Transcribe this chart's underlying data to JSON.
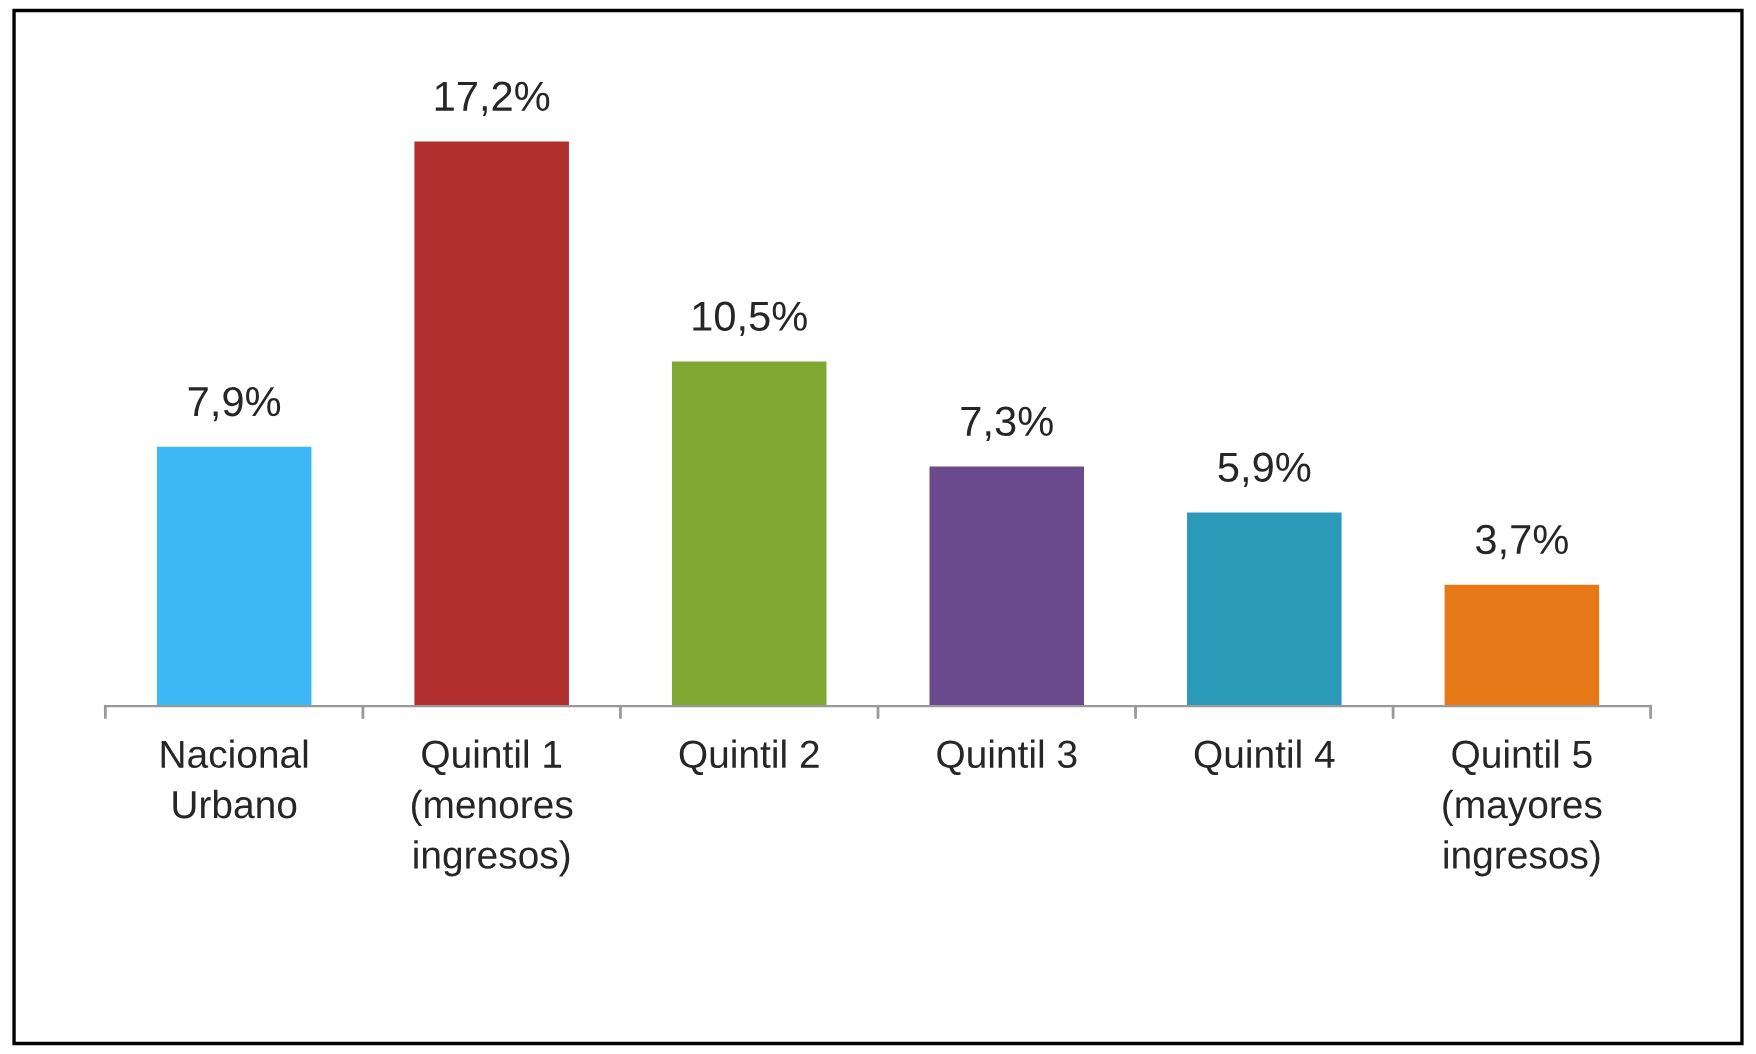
{
  "chart_data": {
    "type": "bar",
    "categories": [
      "Nacional\nUrbano",
      "Quintil 1\n(menores\ningresos)",
      "Quintil 2",
      "Quintil 3",
      "Quintil 4",
      "Quintil 5\n(mayores\ningresos)"
    ],
    "values": [
      7.9,
      17.2,
      10.5,
      7.3,
      5.9,
      3.7
    ],
    "value_labels": [
      "7,9%",
      "17,2%",
      "10,5%",
      "7,3%",
      "5,9%",
      "3,7%"
    ],
    "colors": [
      "#3db8f5",
      "#b22f2f",
      "#7fa832",
      "#6a4a8c",
      "#2a9ab8",
      "#e77817"
    ],
    "grid": false,
    "legend": false
  }
}
